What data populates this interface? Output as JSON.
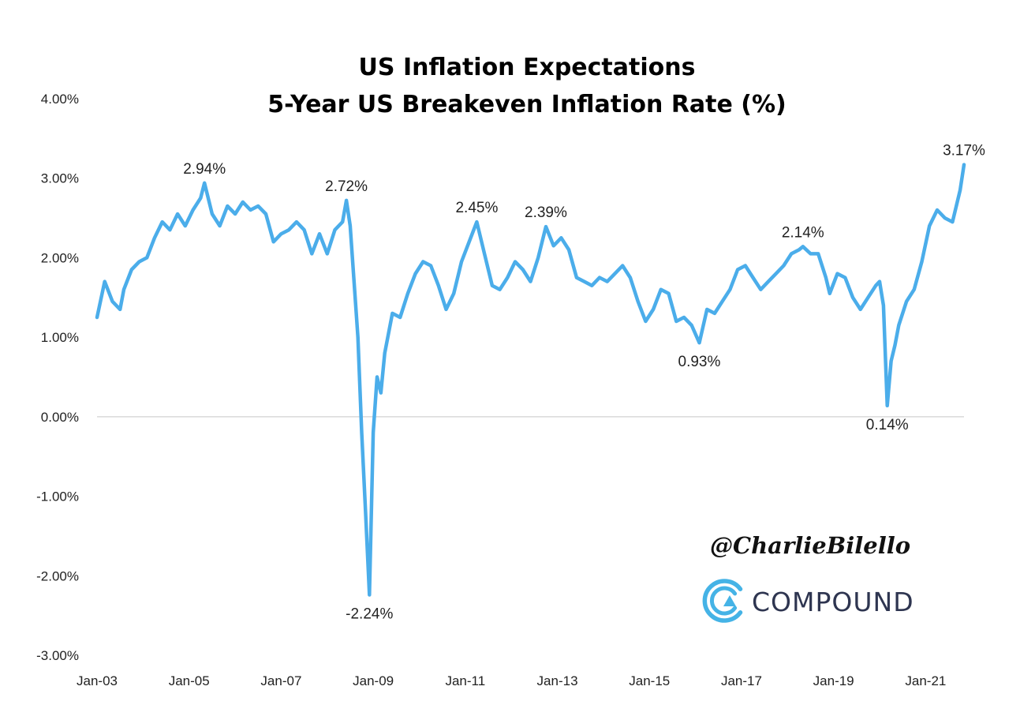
{
  "chart_data": {
    "type": "line",
    "title": "US Inflation Expectations",
    "subtitle": "5-Year US Breakeven Inflation Rate (%)",
    "xlabel": "",
    "ylabel": "",
    "ylim": [
      -3,
      4
    ],
    "xlim": [
      "2003-01",
      "2021-11"
    ],
    "grid": false,
    "legend": "none",
    "y_ticks": [
      {
        "value": 4,
        "label": "4.00%"
      },
      {
        "value": 3,
        "label": "3.00%"
      },
      {
        "value": 2,
        "label": "2.00%"
      },
      {
        "value": 1,
        "label": "1.00%"
      },
      {
        "value": 0,
        "label": "0.00%"
      },
      {
        "value": -1,
        "label": "-1.00%"
      },
      {
        "value": -2,
        "label": "-2.00%"
      },
      {
        "value": -3,
        "label": "-3.00%"
      }
    ],
    "x_ticks": [
      {
        "date": "2003-01",
        "label": "Jan-03"
      },
      {
        "date": "2005-01",
        "label": "Jan-05"
      },
      {
        "date": "2007-01",
        "label": "Jan-07"
      },
      {
        "date": "2009-01",
        "label": "Jan-09"
      },
      {
        "date": "2011-01",
        "label": "Jan-11"
      },
      {
        "date": "2013-01",
        "label": "Jan-13"
      },
      {
        "date": "2015-01",
        "label": "Jan-15"
      },
      {
        "date": "2017-01",
        "label": "Jan-17"
      },
      {
        "date": "2019-01",
        "label": "Jan-19"
      },
      {
        "date": "2021-01",
        "label": "Jan-21"
      }
    ],
    "series": [
      {
        "color": "#4badea",
        "points": [
          [
            "2003-01",
            1.25
          ],
          [
            "2003-03",
            1.7
          ],
          [
            "2003-05",
            1.45
          ],
          [
            "2003-07",
            1.35
          ],
          [
            "2003-08",
            1.6
          ],
          [
            "2003-10",
            1.85
          ],
          [
            "2003-12",
            1.95
          ],
          [
            "2004-02",
            2.0
          ],
          [
            "2004-04",
            2.25
          ],
          [
            "2004-06",
            2.45
          ],
          [
            "2004-08",
            2.35
          ],
          [
            "2004-10",
            2.55
          ],
          [
            "2004-12",
            2.4
          ],
          [
            "2005-02",
            2.6
          ],
          [
            "2005-04",
            2.75
          ],
          [
            "2005-05",
            2.94
          ],
          [
            "2005-07",
            2.55
          ],
          [
            "2005-09",
            2.4
          ],
          [
            "2005-11",
            2.65
          ],
          [
            "2006-01",
            2.55
          ],
          [
            "2006-03",
            2.7
          ],
          [
            "2006-05",
            2.6
          ],
          [
            "2006-07",
            2.65
          ],
          [
            "2006-09",
            2.55
          ],
          [
            "2006-11",
            2.2
          ],
          [
            "2007-01",
            2.3
          ],
          [
            "2007-03",
            2.35
          ],
          [
            "2007-05",
            2.45
          ],
          [
            "2007-07",
            2.35
          ],
          [
            "2007-09",
            2.05
          ],
          [
            "2007-11",
            2.3
          ],
          [
            "2008-01",
            2.05
          ],
          [
            "2008-03",
            2.35
          ],
          [
            "2008-05",
            2.45
          ],
          [
            "2008-06",
            2.72
          ],
          [
            "2008-07",
            2.4
          ],
          [
            "2008-08",
            1.7
          ],
          [
            "2008-09",
            1.0
          ],
          [
            "2008-10",
            -0.2
          ],
          [
            "2008-11",
            -1.2
          ],
          [
            "2008-12",
            -2.24
          ],
          [
            "2009-01",
            -0.2
          ],
          [
            "2009-02",
            0.5
          ],
          [
            "2009-03",
            0.3
          ],
          [
            "2009-04",
            0.8
          ],
          [
            "2009-06",
            1.3
          ],
          [
            "2009-08",
            1.25
          ],
          [
            "2009-10",
            1.55
          ],
          [
            "2009-12",
            1.8
          ],
          [
            "2010-02",
            1.95
          ],
          [
            "2010-04",
            1.9
          ],
          [
            "2010-06",
            1.65
          ],
          [
            "2010-08",
            1.35
          ],
          [
            "2010-10",
            1.55
          ],
          [
            "2010-12",
            1.95
          ],
          [
            "2011-02",
            2.2
          ],
          [
            "2011-04",
            2.45
          ],
          [
            "2011-06",
            2.05
          ],
          [
            "2011-08",
            1.65
          ],
          [
            "2011-10",
            1.6
          ],
          [
            "2011-12",
            1.75
          ],
          [
            "2012-02",
            1.95
          ],
          [
            "2012-04",
            1.85
          ],
          [
            "2012-06",
            1.7
          ],
          [
            "2012-08",
            2.0
          ],
          [
            "2012-10",
            2.39
          ],
          [
            "2012-12",
            2.15
          ],
          [
            "2013-02",
            2.25
          ],
          [
            "2013-04",
            2.1
          ],
          [
            "2013-06",
            1.75
          ],
          [
            "2013-08",
            1.7
          ],
          [
            "2013-10",
            1.65
          ],
          [
            "2013-12",
            1.75
          ],
          [
            "2014-02",
            1.7
          ],
          [
            "2014-04",
            1.8
          ],
          [
            "2014-06",
            1.9
          ],
          [
            "2014-08",
            1.75
          ],
          [
            "2014-10",
            1.45
          ],
          [
            "2014-12",
            1.2
          ],
          [
            "2015-02",
            1.35
          ],
          [
            "2015-04",
            1.6
          ],
          [
            "2015-06",
            1.55
          ],
          [
            "2015-08",
            1.2
          ],
          [
            "2015-10",
            1.25
          ],
          [
            "2015-12",
            1.15
          ],
          [
            "2016-02",
            0.93
          ],
          [
            "2016-04",
            1.35
          ],
          [
            "2016-06",
            1.3
          ],
          [
            "2016-08",
            1.45
          ],
          [
            "2016-10",
            1.6
          ],
          [
            "2016-12",
            1.85
          ],
          [
            "2017-02",
            1.9
          ],
          [
            "2017-04",
            1.75
          ],
          [
            "2017-06",
            1.6
          ],
          [
            "2017-08",
            1.7
          ],
          [
            "2017-10",
            1.8
          ],
          [
            "2017-12",
            1.9
          ],
          [
            "2018-02",
            2.05
          ],
          [
            "2018-04",
            2.1
          ],
          [
            "2018-05",
            2.14
          ],
          [
            "2018-07",
            2.05
          ],
          [
            "2018-09",
            2.05
          ],
          [
            "2018-11",
            1.75
          ],
          [
            "2018-12",
            1.55
          ],
          [
            "2019-02",
            1.8
          ],
          [
            "2019-04",
            1.75
          ],
          [
            "2019-06",
            1.5
          ],
          [
            "2019-08",
            1.35
          ],
          [
            "2019-10",
            1.5
          ],
          [
            "2019-12",
            1.65
          ],
          [
            "2020-01",
            1.7
          ],
          [
            "2020-02",
            1.4
          ],
          [
            "2020-03",
            0.14
          ],
          [
            "2020-04",
            0.7
          ],
          [
            "2020-05",
            0.9
          ],
          [
            "2020-06",
            1.15
          ],
          [
            "2020-08",
            1.45
          ],
          [
            "2020-10",
            1.6
          ],
          [
            "2020-12",
            1.95
          ],
          [
            "2021-02",
            2.4
          ],
          [
            "2021-04",
            2.6
          ],
          [
            "2021-06",
            2.5
          ],
          [
            "2021-08",
            2.45
          ],
          [
            "2021-10",
            2.85
          ],
          [
            "2021-11",
            3.17
          ]
        ]
      }
    ],
    "annotations": [
      {
        "date": "2005-05",
        "value": 2.94,
        "label": "2.94%",
        "position": "above"
      },
      {
        "date": "2008-06",
        "value": 2.72,
        "label": "2.72%",
        "position": "above"
      },
      {
        "date": "2008-12",
        "value": -2.24,
        "label": "-2.24%",
        "position": "below"
      },
      {
        "date": "2011-04",
        "value": 2.45,
        "label": "2.45%",
        "position": "above"
      },
      {
        "date": "2012-10",
        "value": 2.39,
        "label": "2.39%",
        "position": "above"
      },
      {
        "date": "2016-02",
        "value": 0.93,
        "label": "0.93%",
        "position": "below"
      },
      {
        "date": "2018-05",
        "value": 2.14,
        "label": "2.14%",
        "position": "above"
      },
      {
        "date": "2020-03",
        "value": 0.14,
        "label": "0.14%",
        "position": "below"
      },
      {
        "date": "2021-11",
        "value": 3.17,
        "label": "3.17%",
        "position": "above"
      }
    ]
  },
  "watermark": {
    "handle": "@CharlieBilello",
    "brand_name": "COMPOUND",
    "brand_color": "#45b3e6"
  }
}
